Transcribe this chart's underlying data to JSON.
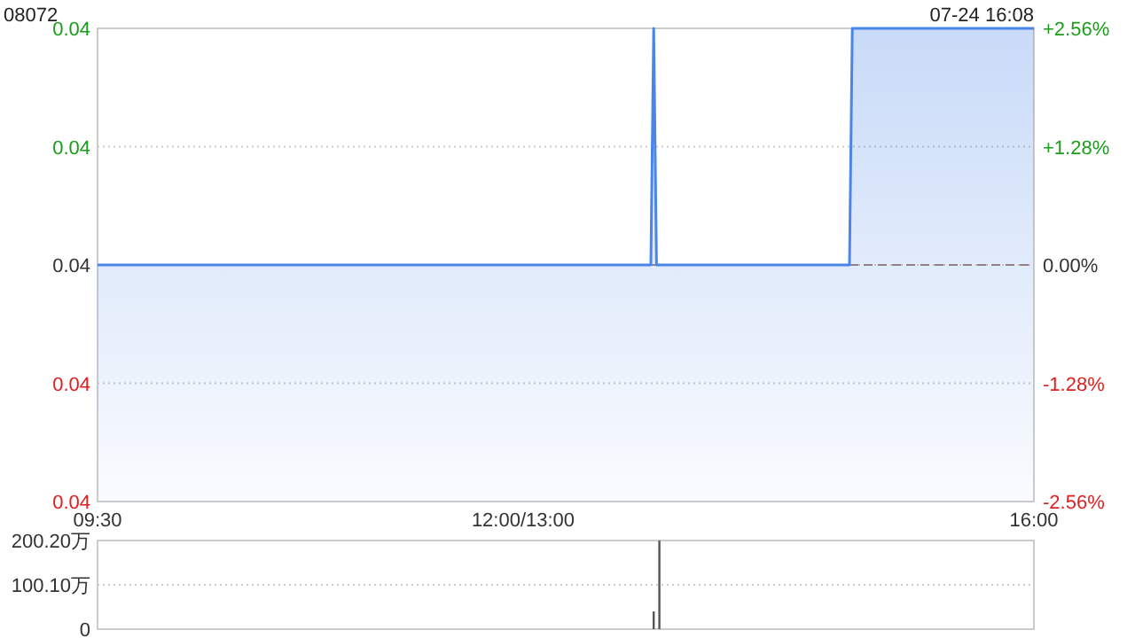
{
  "chart_data": [
    {
      "type": "area",
      "title": "08072",
      "annotations": [
        "07-24 16:08"
      ],
      "categories": [
        "09:30",
        null,
        null,
        null,
        null,
        null,
        null,
        null,
        null,
        null,
        null,
        null,
        null,
        null,
        null,
        null,
        null,
        null,
        null,
        null,
        null,
        null,
        null,
        null,
        null,
        null,
        null,
        null,
        null,
        null,
        null,
        null,
        null,
        null,
        null,
        null,
        null,
        null,
        null,
        null,
        null,
        null,
        null,
        null,
        null,
        null,
        null,
        null,
        null,
        null,
        null,
        null,
        null,
        null,
        null,
        null,
        null,
        null,
        null,
        null,
        null,
        null,
        null,
        null,
        null,
        null,
        null,
        null,
        null,
        null,
        null,
        null,
        null,
        null,
        null,
        null,
        null,
        null,
        null,
        null,
        null,
        null,
        null,
        null,
        null,
        null,
        null,
        null,
        null,
        null,
        null,
        null,
        null,
        null,
        null,
        null,
        null,
        null,
        null,
        null,
        null,
        null,
        null,
        null,
        null,
        null,
        null,
        null,
        null,
        null,
        null,
        null,
        null,
        null,
        null,
        null,
        null,
        null,
        null,
        null,
        null,
        null,
        null,
        null,
        null,
        null,
        null,
        null,
        null,
        null,
        null,
        null,
        null,
        null,
        null,
        null,
        null,
        null,
        null,
        null,
        null,
        null,
        null,
        null,
        null,
        null,
        null,
        null,
        null,
        null,
        "12:00/13:00",
        null,
        null,
        null,
        null,
        null,
        null,
        null,
        null,
        null,
        null,
        null,
        null,
        null,
        null,
        null,
        null,
        null,
        null,
        null,
        null,
        null,
        null,
        null,
        null,
        null,
        null,
        null,
        null,
        null,
        null,
        null,
        null,
        null,
        null,
        null,
        null,
        null,
        null,
        null,
        null,
        null,
        null,
        null,
        null,
        null,
        null,
        null,
        null,
        null,
        null,
        null,
        null,
        null,
        null,
        null,
        null,
        null,
        null,
        null,
        null,
        null,
        null,
        null,
        null,
        null,
        null,
        null,
        null,
        null,
        null,
        null,
        null,
        null,
        null,
        null,
        null,
        null,
        null,
        null,
        null,
        null,
        null,
        null,
        null,
        null,
        null,
        null,
        null,
        null,
        null,
        null,
        null,
        null,
        null,
        null,
        null,
        null,
        null,
        null,
        null,
        null,
        null,
        null,
        null,
        null,
        null,
        null,
        null,
        null,
        null,
        null,
        null,
        null,
        null,
        null,
        null,
        null,
        null,
        null,
        null,
        null,
        null,
        null,
        null,
        null,
        null,
        null,
        null,
        null,
        null,
        null,
        null,
        null,
        null,
        null,
        null,
        null,
        null,
        null,
        null,
        null,
        null,
        null,
        null,
        null,
        null,
        null,
        null,
        null,
        null,
        null,
        null,
        null,
        null,
        null,
        null,
        null,
        null,
        null,
        null,
        null,
        null,
        null,
        null,
        null,
        null,
        null,
        null,
        null,
        null,
        null,
        null,
        null,
        null,
        null,
        null,
        null,
        null,
        null,
        "16:00"
      ],
      "series": [
        {
          "color": "#4a86e8",
          "values": [
            0.039,
            0.039,
            0.039,
            0.039,
            0.039,
            0.039,
            0.039,
            0.039,
            0.039,
            0.039,
            0.039,
            0.039,
            0.039,
            0.039,
            0.039,
            0.039,
            0.039,
            0.039,
            0.039,
            0.039,
            0.039,
            0.039,
            0.039,
            0.039,
            0.039,
            0.039,
            0.039,
            0.039,
            0.039,
            0.039,
            0.039,
            0.039,
            0.039,
            0.039,
            0.039,
            0.039,
            0.039,
            0.039,
            0.039,
            0.039,
            0.039,
            0.039,
            0.039,
            0.039,
            0.039,
            0.039,
            0.039,
            0.039,
            0.039,
            0.039,
            0.039,
            0.039,
            0.039,
            0.039,
            0.039,
            0.039,
            0.039,
            0.039,
            0.039,
            0.039,
            0.039,
            0.039,
            0.039,
            0.039,
            0.039,
            0.039,
            0.039,
            0.039,
            0.039,
            0.039,
            0.039,
            0.039,
            0.039,
            0.039,
            0.039,
            0.039,
            0.039,
            0.039,
            0.039,
            0.039,
            0.039,
            0.039,
            0.039,
            0.039,
            0.039,
            0.039,
            0.039,
            0.039,
            0.039,
            0.039,
            0.039,
            0.039,
            0.039,
            0.039,
            0.039,
            0.039,
            0.039,
            0.039,
            0.039,
            0.039,
            0.039,
            0.039,
            0.039,
            0.039,
            0.039,
            0.039,
            0.039,
            0.039,
            0.039,
            0.039,
            0.039,
            0.039,
            0.039,
            0.039,
            0.039,
            0.039,
            0.039,
            0.039,
            0.039,
            0.039,
            0.039,
            0.039,
            0.039,
            0.039,
            0.039,
            0.039,
            0.039,
            0.039,
            0.039,
            0.039,
            0.039,
            0.039,
            0.039,
            0.039,
            0.039,
            0.039,
            0.039,
            0.039,
            0.039,
            0.039,
            0.039,
            0.039,
            0.039,
            0.039,
            0.039,
            0.039,
            0.039,
            0.039,
            0.039,
            0.039,
            0.039,
            0.039,
            0.039,
            0.039,
            0.039,
            0.039,
            0.039,
            0.039,
            0.039,
            0.039,
            0.039,
            0.039,
            0.039,
            0.039,
            0.039,
            0.039,
            0.039,
            0.039,
            0.039,
            0.039,
            0.039,
            0.039,
            0.039,
            0.039,
            0.039,
            0.039,
            0.039,
            0.039,
            0.039,
            0.039,
            0.039,
            0.039,
            0.039,
            0.039,
            0.039,
            0.039,
            0.039,
            0.039,
            0.039,
            0.039,
            0.039,
            0.039,
            0.039,
            0.039,
            0.039,
            0.039,
            0.04,
            0.039,
            0.039,
            0.039,
            0.039,
            0.039,
            0.039,
            0.039,
            0.039,
            0.039,
            0.039,
            0.039,
            0.039,
            0.039,
            0.039,
            0.039,
            0.039,
            0.039,
            0.039,
            0.039,
            0.039,
            0.039,
            0.039,
            0.039,
            0.039,
            0.039,
            0.039,
            0.039,
            0.039,
            0.039,
            0.039,
            0.039,
            0.039,
            0.039,
            0.039,
            0.039,
            0.039,
            0.039,
            0.039,
            0.039,
            0.039,
            0.039,
            0.039,
            0.039,
            0.039,
            0.039,
            0.039,
            0.039,
            0.039,
            0.039,
            0.039,
            0.039,
            0.039,
            0.039,
            0.039,
            0.039,
            0.039,
            0.039,
            0.039,
            0.039,
            0.039,
            0.039,
            0.039,
            0.039,
            0.039,
            0.039,
            0.039,
            0.039,
            0.039,
            0.039,
            0.04,
            0.04,
            0.04,
            0.04,
            0.04,
            0.04,
            0.04,
            0.04,
            0.04,
            0.04,
            0.04,
            0.04,
            0.04,
            0.04,
            0.04,
            0.04,
            0.04,
            0.04,
            0.04,
            0.04,
            0.04,
            0.04,
            0.04,
            0.04,
            0.04,
            0.04,
            0.04,
            0.04,
            0.04,
            0.04,
            0.04,
            0.04,
            0.04,
            0.04,
            0.04,
            0.04,
            0.04,
            0.04,
            0.04,
            0.04,
            0.04,
            0.04,
            0.04,
            0.04,
            0.04,
            0.04,
            0.04,
            0.04,
            0.04,
            0.04,
            0.04,
            0.04,
            0.04,
            0.04,
            0.04,
            0.04,
            0.04,
            0.04,
            0.04,
            0.04,
            0.04,
            0.04,
            0.04,
            0.04,
            0.04
          ]
        }
      ],
      "ylim": [
        0.038,
        0.04
      ],
      "yticks": [
        {
          "value": 0.038,
          "label": "0.04"
        },
        {
          "value": 0.0385,
          "label": "0.04"
        },
        {
          "value": 0.039,
          "label": "0.04"
        },
        {
          "value": 0.0395,
          "label": "0.04"
        },
        {
          "value": 0.04,
          "label": "0.04"
        }
      ],
      "y2lim": [
        -2.56,
        2.56
      ],
      "y2ticks": [
        {
          "value": -2.56,
          "label": "-2.56%"
        },
        {
          "value": -1.28,
          "label": "-1.28%"
        },
        {
          "value": 0,
          "label": "0.00%"
        },
        {
          "value": 1.28,
          "label": "+1.28%"
        },
        {
          "value": 2.56,
          "label": "+2.56%"
        }
      ],
      "ref_lines": [
        {
          "axis": "y2",
          "value": 0,
          "color": "#a08070",
          "line_style": "dashed"
        }
      ],
      "grid": "y"
    },
    {
      "type": "bar",
      "categories": [
        null,
        null,
        null,
        null,
        null,
        null,
        null,
        null,
        null,
        null,
        null,
        null,
        null,
        null,
        null,
        null,
        null,
        null,
        null,
        null,
        null,
        null,
        null,
        null,
        null,
        null,
        null,
        null,
        null,
        null,
        null,
        null,
        null,
        null,
        null,
        null,
        null,
        null,
        null,
        null,
        null,
        null,
        null,
        null,
        null,
        null,
        null,
        null,
        null,
        null,
        null,
        null,
        null,
        null,
        null,
        null,
        null,
        null,
        null,
        null,
        null,
        null,
        null,
        null,
        null,
        null,
        null,
        null,
        null,
        null,
        null,
        null,
        null,
        null,
        null,
        null,
        null,
        null,
        null,
        null,
        null,
        null,
        null,
        null,
        null,
        null,
        null,
        null,
        null,
        null,
        null,
        null,
        null,
        null,
        null,
        null,
        null,
        null,
        null,
        null,
        null,
        null,
        null,
        null,
        null,
        null,
        null,
        null,
        null,
        null,
        null,
        null,
        null,
        null,
        null,
        null,
        null,
        null,
        null,
        null,
        null,
        null,
        null,
        null,
        null,
        null,
        null,
        null,
        null,
        null,
        null,
        null,
        null,
        null,
        null,
        null,
        null,
        null,
        null,
        null,
        null,
        null,
        null,
        null,
        null,
        null,
        null,
        null,
        null,
        null,
        null,
        null,
        null,
        null,
        null,
        null,
        null,
        null,
        null,
        null,
        null,
        null,
        null,
        null,
        null,
        null,
        null,
        null,
        null,
        null,
        null,
        null,
        null,
        null,
        null,
        null,
        null,
        null,
        null,
        null,
        null,
        null,
        null,
        null,
        null,
        null,
        null,
        null,
        null,
        null,
        null,
        null,
        null,
        null,
        null,
        null,
        null,
        null,
        null,
        null,
        null,
        null,
        null,
        null,
        null,
        null,
        null,
        null,
        null,
        null,
        null,
        null,
        null,
        null,
        null,
        null,
        null,
        null,
        null,
        null,
        null,
        null,
        null,
        null,
        null,
        null,
        null,
        null,
        null,
        null,
        null,
        null,
        null,
        null,
        null,
        null,
        null,
        null,
        null,
        null,
        null,
        null,
        null,
        null,
        null,
        null,
        null,
        null,
        null,
        null,
        null,
        null,
        null,
        null,
        null,
        null,
        null,
        null,
        null,
        null,
        null,
        null,
        null,
        null,
        null,
        null,
        null,
        null,
        null,
        null,
        null,
        null,
        null,
        null,
        null,
        null,
        null,
        null,
        null,
        null,
        null,
        null,
        null,
        null,
        null,
        null,
        null,
        null,
        null,
        null,
        null,
        null,
        null,
        null,
        null,
        null,
        null,
        null,
        null,
        null,
        null,
        null,
        null,
        null,
        null,
        null,
        null,
        null,
        null,
        null,
        null,
        null,
        null,
        null,
        null,
        null,
        null,
        null,
        null,
        null,
        null,
        null,
        null,
        null,
        null,
        null,
        null,
        null,
        null,
        null,
        null
      ],
      "series": [
        {
          "color": "#555555",
          "values": [
            null,
            null,
            null,
            null,
            null,
            null,
            null,
            null,
            null,
            null,
            null,
            null,
            null,
            null,
            null,
            null,
            null,
            null,
            null,
            null,
            null,
            null,
            null,
            null,
            null,
            null,
            null,
            null,
            null,
            null,
            null,
            null,
            null,
            null,
            null,
            null,
            null,
            null,
            null,
            null,
            null,
            null,
            null,
            null,
            null,
            null,
            null,
            null,
            null,
            null,
            null,
            null,
            null,
            null,
            null,
            null,
            null,
            null,
            null,
            null,
            null,
            null,
            null,
            null,
            null,
            null,
            null,
            null,
            null,
            null,
            null,
            null,
            null,
            null,
            null,
            null,
            null,
            null,
            null,
            null,
            null,
            null,
            null,
            null,
            null,
            null,
            null,
            null,
            null,
            null,
            null,
            null,
            null,
            null,
            null,
            null,
            null,
            null,
            null,
            null,
            null,
            null,
            null,
            null,
            null,
            null,
            null,
            null,
            null,
            null,
            null,
            null,
            null,
            null,
            null,
            null,
            null,
            null,
            null,
            null,
            null,
            null,
            null,
            null,
            null,
            null,
            null,
            null,
            null,
            null,
            null,
            null,
            null,
            null,
            null,
            null,
            null,
            null,
            null,
            null,
            null,
            null,
            null,
            null,
            null,
            null,
            null,
            null,
            null,
            null,
            null,
            null,
            null,
            null,
            null,
            null,
            null,
            null,
            null,
            null,
            null,
            null,
            null,
            null,
            null,
            null,
            null,
            null,
            null,
            null,
            null,
            null,
            null,
            null,
            null,
            null,
            null,
            null,
            null,
            null,
            null,
            null,
            null,
            null,
            null,
            null,
            null,
            null,
            null,
            null,
            null,
            null,
            null,
            null,
            null,
            null,
            40,
            null,
            200,
            null,
            null,
            null,
            null,
            null,
            null,
            null,
            null,
            null,
            null,
            null,
            null,
            null,
            null,
            null,
            null,
            null,
            null,
            null,
            null,
            null,
            null,
            null,
            null,
            null,
            null,
            null,
            null,
            null,
            null,
            null,
            null,
            null,
            null,
            null,
            null,
            null,
            null,
            null,
            null,
            null,
            null,
            null,
            null,
            null,
            null,
            null,
            null,
            null,
            null,
            null,
            null,
            null,
            null,
            null,
            null,
            null,
            null,
            null,
            null,
            null,
            null,
            null,
            null,
            null,
            null,
            null,
            null,
            null,
            null,
            null,
            null,
            null,
            null,
            null,
            null,
            null,
            null,
            null,
            null,
            null,
            null,
            null,
            null,
            null,
            null,
            null,
            null,
            null,
            null,
            null,
            null,
            null,
            null,
            null,
            null,
            null,
            null,
            null,
            null,
            null,
            null,
            null,
            null,
            null,
            null,
            null,
            null,
            null,
            null,
            null,
            null,
            null,
            null,
            null,
            null,
            null,
            null,
            null,
            null,
            null,
            null,
            null,
            null,
            null,
            null,
            null,
            null,
            null,
            null,
            null,
            null
          ]
        }
      ],
      "ylim": [
        0,
        200.2
      ],
      "yticks": [
        0,
        {
          "value": 100.1,
          "label": "100.10万"
        },
        {
          "value": 200.2,
          "label": "200.20万"
        }
      ],
      "tick_labels": "y",
      "grid": "y"
    }
  ]
}
